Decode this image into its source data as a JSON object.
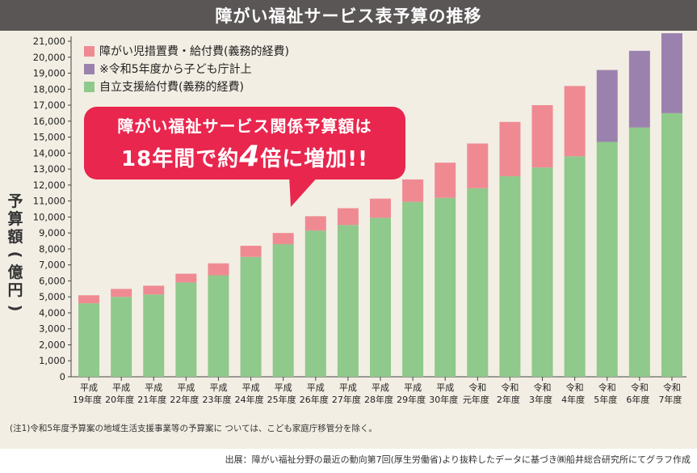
{
  "title": "障がい福祉サービス表予算の推移",
  "legend": [
    {
      "label": "障がい児措置費・給付費(義務的経費)",
      "color": "#ef8a93"
    },
    {
      "label": "※令和5年度から子ども庁計上",
      "color": "#9b82ae"
    },
    {
      "label": "自立支援給付費(義務的経費)",
      "color": "#8fc98b"
    }
  ],
  "callout": {
    "line1": "障がい福祉サービス関係予算額は",
    "line2_pre": "18年間で約",
    "line2_big": "4",
    "line2_post": "倍に増加!!"
  },
  "ylabel_chars": [
    "予",
    "算",
    "額",
    "(",
    "億",
    "円",
    ")"
  ],
  "note": "(注1)令和5年度予算案の地域生活支援事業等の予算案に ついては、こども家庭庁移管分を除く。",
  "source": "出展：障がい福祉分野の最近の動向第7回(厚生労働省)より抜粋したデータに基づき㈱船井総合研究所にてグラフ作成",
  "chart_data": {
    "type": "bar",
    "stacked": true,
    "title": "障がい福祉サービス表予算の推移",
    "ylabel": "予算額(億円)",
    "ylim": [
      0,
      21000
    ],
    "ytick_step": 1000,
    "categories": [
      [
        "平成",
        "19年度"
      ],
      [
        "平成",
        "20年度"
      ],
      [
        "平成",
        "21年度"
      ],
      [
        "平成",
        "22年度"
      ],
      [
        "平成",
        "23年度"
      ],
      [
        "平成",
        "24年度"
      ],
      [
        "平成",
        "25年度"
      ],
      [
        "平成",
        "26年度"
      ],
      [
        "平成",
        "27年度"
      ],
      [
        "平成",
        "28年度"
      ],
      [
        "平成",
        "29年度"
      ],
      [
        "平成",
        "30年度"
      ],
      [
        "令和",
        "元年度"
      ],
      [
        "令和",
        "2年度"
      ],
      [
        "令和",
        "3年度"
      ],
      [
        "令和",
        "4年度"
      ],
      [
        "令和",
        "5年度"
      ],
      [
        "令和",
        "6年度"
      ],
      [
        "令和",
        "7年度"
      ]
    ],
    "series": [
      {
        "name": "自立支援給付費(義務的経費)",
        "color": "#8fc98b",
        "values": [
          4600,
          5000,
          5150,
          5900,
          6350,
          7500,
          8300,
          9150,
          9500,
          9950,
          10950,
          11200,
          11800,
          12550,
          13100,
          13800,
          14700,
          15600,
          16500
        ]
      },
      {
        "name": "障がい児措置費・給付費(義務的経費)",
        "color": "#ef8a93",
        "values": [
          500,
          500,
          550,
          550,
          750,
          700,
          700,
          900,
          1050,
          1200,
          1400,
          2200,
          2800,
          3400,
          3900,
          4400,
          0,
          0,
          0
        ]
      },
      {
        "name": "※令和5年度から子ども庁計上",
        "color": "#9b82ae",
        "values": [
          0,
          0,
          0,
          0,
          0,
          0,
          0,
          0,
          0,
          0,
          0,
          0,
          0,
          0,
          0,
          0,
          4500,
          4800,
          5000
        ]
      }
    ]
  }
}
